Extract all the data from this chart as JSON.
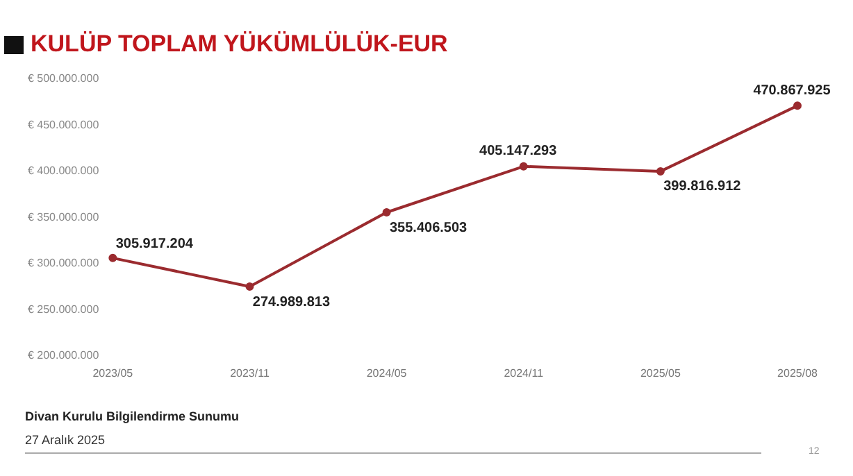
{
  "chart_data": {
    "type": "line",
    "title": "KULÜP TOPLAM YÜKÜMLÜLÜK-EUR",
    "categories": [
      "2023/05",
      "2023/11",
      "2024/05",
      "2024/11",
      "2025/05",
      "2025/08"
    ],
    "values": [
      305917204,
      274989813,
      355406503,
      405147293,
      399816912,
      470867925
    ],
    "value_labels": [
      "305.917.204",
      "274.989.813",
      "355.406.503",
      "405.147.293",
      "399.816.912",
      "470.867.925"
    ],
    "color": "#9b2b2f",
    "marker": "circle",
    "grid": false,
    "legend": false,
    "ylim": [
      200000000,
      500000000
    ],
    "yticks": [
      {
        "value": 200000000,
        "label": "€ 200.000.000"
      },
      {
        "value": 250000000,
        "label": "€ 250.000.000"
      },
      {
        "value": 300000000,
        "label": "€ 300.000.000"
      },
      {
        "value": 350000000,
        "label": "€ 350.000.000"
      },
      {
        "value": 400000000,
        "label": "€ 400.000.000"
      },
      {
        "value": 450000000,
        "label": "€ 450.000.000"
      },
      {
        "value": 500000000,
        "label": "€ 500.000.000"
      }
    ],
    "annotations": [
      "Divan Kurulu Bilgilendirme Sunumu",
      "27 Aralık 2025",
      "12"
    ]
  }
}
